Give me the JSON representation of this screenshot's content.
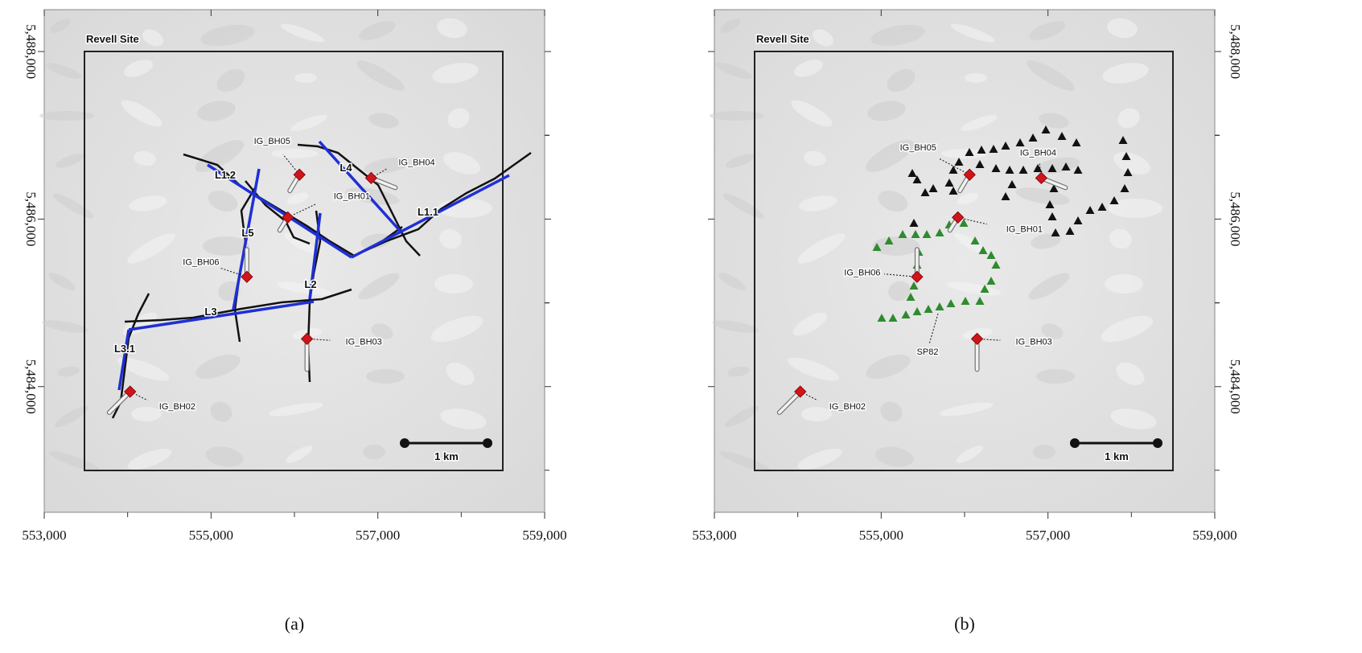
{
  "figure": {
    "panels": [
      {
        "caption": "(a)",
        "site": "Revell Site",
        "scale_label": "1 km",
        "line_labels": [
          "L1.2",
          "L4",
          "L5",
          "L1.1",
          "L2",
          "L3",
          "L3.1"
        ]
      },
      {
        "caption": "(b)",
        "site": "Revell Site",
        "scale_label": "1 km",
        "shotpoint_label": "SP82"
      }
    ],
    "xlim": [
      553000,
      559000
    ],
    "ylim": [
      5482500,
      5488500
    ],
    "xticks": [
      {
        "value": 553000,
        "label": "553,000"
      },
      {
        "value": 555000,
        "label": "555,000"
      },
      {
        "value": 557000,
        "label": "557,000"
      },
      {
        "value": 559000,
        "label": "559,000"
      }
    ],
    "yticks": [
      {
        "value": 5484000,
        "label": "5,484,000"
      },
      {
        "value": 5486000,
        "label": "5,486,000"
      },
      {
        "value": 5488000,
        "label": "5,488,000"
      }
    ],
    "boreholes": [
      {
        "label": "IG_BH05",
        "x": 556060,
        "y": 5486530
      },
      {
        "label": "IG_BH04",
        "x": 556920,
        "y": 5486490
      },
      {
        "label": "IG_BH01",
        "x": 555920,
        "y": 5486020
      },
      {
        "label": "IG_BH06",
        "x": 555430,
        "y": 5485310
      },
      {
        "label": "IG_BH03",
        "x": 556150,
        "y": 5484570
      },
      {
        "label": "IG_BH02",
        "x": 554030,
        "y": 5483940
      }
    ]
  }
}
